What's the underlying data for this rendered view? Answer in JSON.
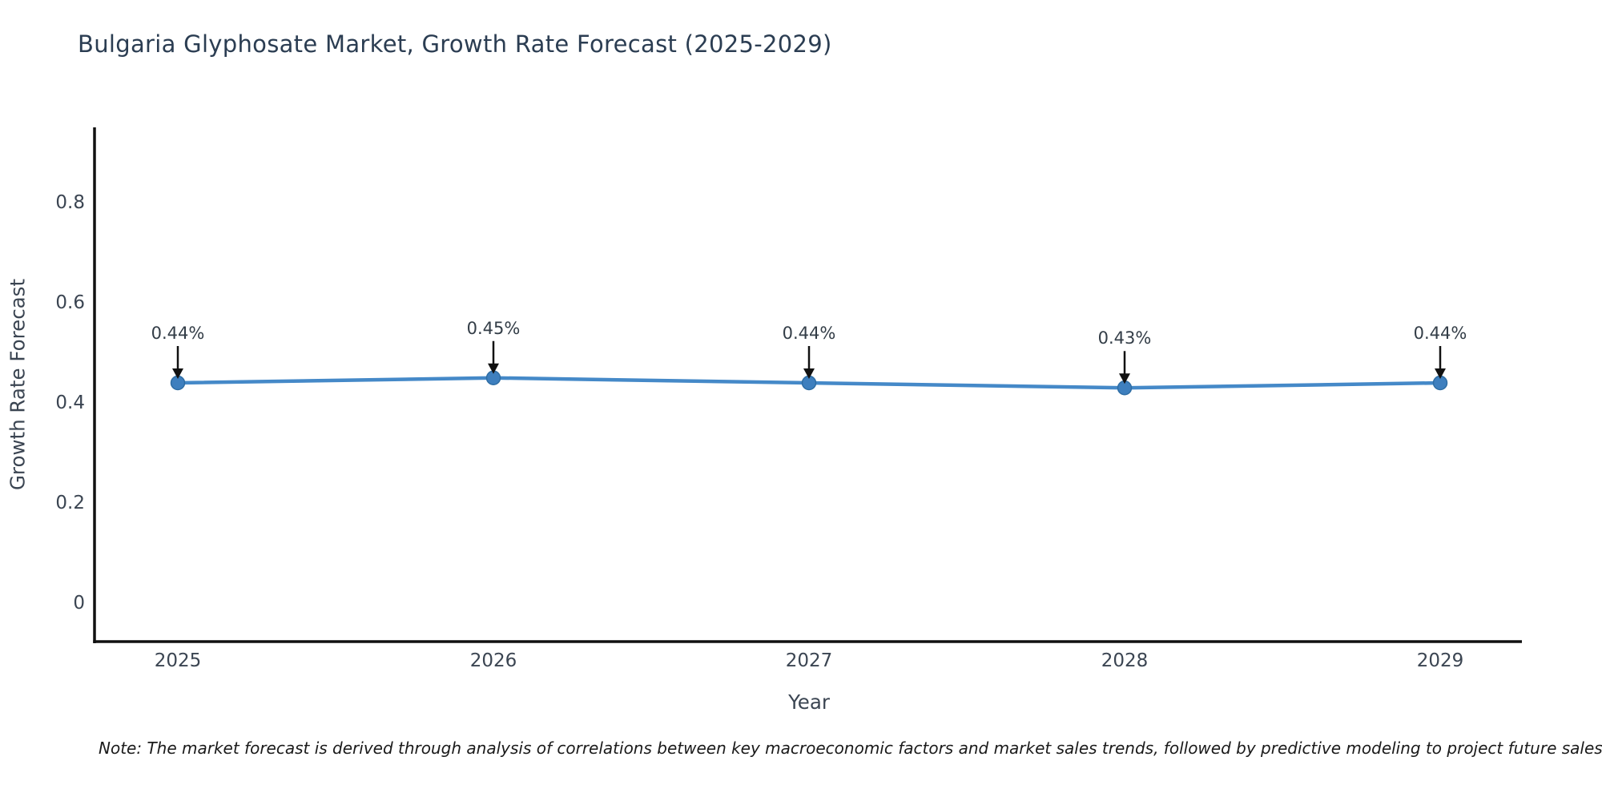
{
  "chart_data": {
    "type": "line",
    "title": "Bulgaria Glyphosate Market, Growth Rate Forecast (2025-2029)",
    "xlabel": "Year",
    "ylabel": "Growth Rate Forecast",
    "categories": [
      "2025",
      "2026",
      "2027",
      "2028",
      "2029"
    ],
    "values": [
      0.44,
      0.45,
      0.44,
      0.43,
      0.44
    ],
    "point_labels": [
      "0.44%",
      "0.45%",
      "0.44%",
      "0.43%",
      "0.44%"
    ],
    "yticks": [
      0,
      0.2,
      0.4,
      0.6,
      0.8
    ],
    "ytick_labels": [
      "0",
      "0.2",
      "0.4",
      "0.6",
      "0.8"
    ],
    "ylim": [
      -0.08,
      0.95
    ],
    "grid": false,
    "legend": "none",
    "colors": {
      "line": "#4589c8",
      "marker_fill": "#3e7fbe",
      "marker_edge": "#2e6da4",
      "axis_spine": "#111111",
      "annotation_arrow": "#111111",
      "title_text": "#2b3d52",
      "tick_text": "#3b4552",
      "annotation_text": "#333d47"
    }
  },
  "note": "Note: The market forecast is derived through analysis of correlations between key macroeconomic factors and market sales trends, followed by predictive modeling to project future sales"
}
